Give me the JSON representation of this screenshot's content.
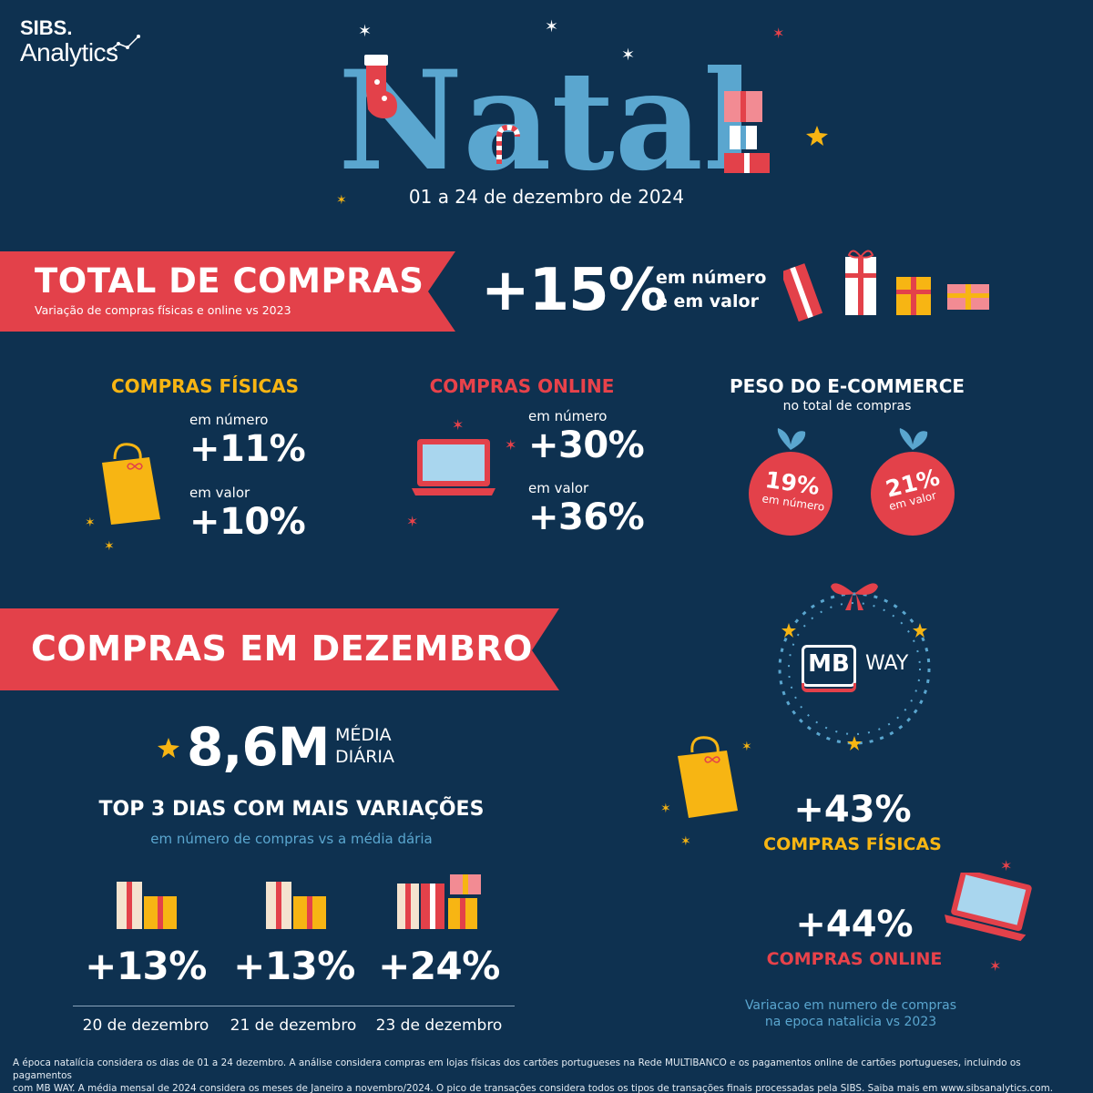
{
  "brand": {
    "line1": "SIBS.",
    "line2": "Analytics"
  },
  "title": "Natal",
  "date_range": "01 a 24 de dezembro de 2024",
  "total": {
    "title": "TOTAL DE COMPRAS",
    "subtitle": "Variação de compras físicas e online vs 2023",
    "value": "+15%",
    "desc_line1": "em número",
    "desc_line2": "e em valor"
  },
  "fisicas": {
    "title": "COMPRAS FÍSICAS",
    "label_numero": "em número",
    "value_numero": "+11%",
    "label_valor": "em valor",
    "value_valor": "+10%"
  },
  "online": {
    "title": "COMPRAS ONLINE",
    "label_numero": "em número",
    "value_numero": "+30%",
    "label_valor": "em valor",
    "value_valor": "+36%"
  },
  "ecommerce": {
    "title": "PESO DO E-COMMERCE",
    "subtitle": "no total de compras",
    "ball1_value": "19%",
    "ball1_label": "em número",
    "ball2_value": "21%",
    "ball2_label": "em valor"
  },
  "dezembro": {
    "title": "COMPRAS EM DEZEMBRO",
    "avg_value": "8,6M",
    "avg_label1": "MÉDIA",
    "avg_label2": "DIÁRIA",
    "top3_title": "TOP 3 DIAS COM MAIS VARIAÇÕES",
    "top3_subtitle": "em número de compras vs a média dária",
    "days": [
      {
        "value": "+13%",
        "date": "20 de dezembro"
      },
      {
        "value": "+13%",
        "date": "21 de dezembro"
      },
      {
        "value": "+24%",
        "date": "23 de dezembro"
      }
    ]
  },
  "mbway": {
    "logo_mb": "MB",
    "logo_way": "WAY",
    "fisicas_value": "+43%",
    "fisicas_label": "COMPRAS FÍSICAS",
    "online_value": "+44%",
    "online_label": "COMPRAS ONLINE",
    "note_line1": "Variacao em numero de compras",
    "note_line2": "na epoca natalicia vs 2023"
  },
  "footer": {
    "line1": "A época natalícia considera os dias de 01 a 24 dezembro. A análise considera compras em lojas físicas dos cartões portugueses na Rede MULTIBANCO e os pagamentos online de cartões portugueses, incluindo os pagamentos",
    "line2": "com MB WAY. A média mensal de 2024 considera os meses de Janeiro a novembro/2024. O pico de transações considera todos os tipos de transações finais processadas pela SIBS. Saiba mais em www.sibsanalytics.com."
  },
  "colors": {
    "background": "#0e3150",
    "ribbon_red": "#e3414a",
    "accent_yellow": "#f7b513",
    "accent_blue": "#5aa6cf",
    "ornament_red": "#d6383f"
  },
  "icons": [
    "sparkle-icon",
    "star-icon",
    "stocking-icon",
    "candy-cane-icon",
    "gift-icon",
    "shopping-bag-icon",
    "laptop-icon",
    "ornament-icon",
    "wreath-icon",
    "bow-icon"
  ]
}
